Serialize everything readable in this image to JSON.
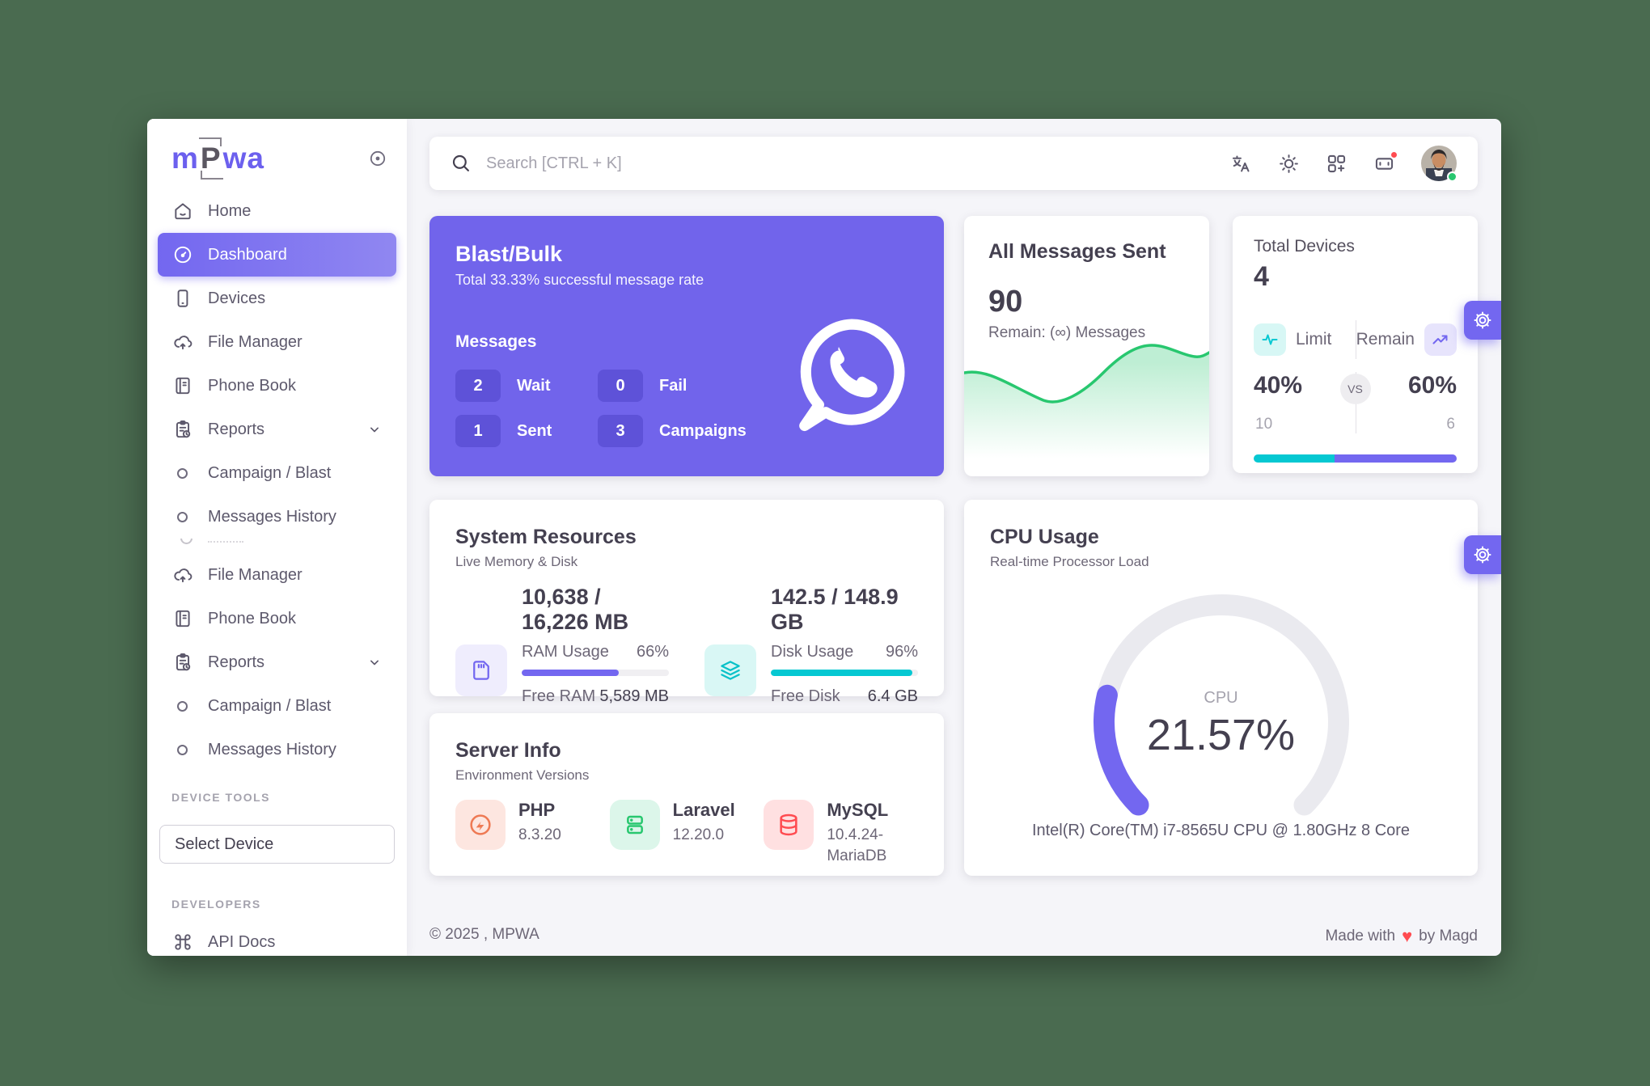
{
  "logo": {
    "letters": [
      "m",
      "P",
      "wa"
    ]
  },
  "topbar": {
    "search_placeholder": "Search [CTRL + K]"
  },
  "sidebar": {
    "items": [
      {
        "label": "Home"
      },
      {
        "label": "Dashboard"
      },
      {
        "label": "Devices"
      },
      {
        "label": "File Manager"
      },
      {
        "label": "Phone Book"
      },
      {
        "label": "Reports"
      },
      {
        "label": "Campaign / Blast"
      },
      {
        "label": "Messages History"
      },
      {
        "label": "File Manager"
      },
      {
        "label": "Phone Book"
      },
      {
        "label": "Reports"
      },
      {
        "label": "Campaign / Blast"
      },
      {
        "label": "Messages History"
      }
    ],
    "device_tools_header": "DEVICE TOOLS",
    "select_device": "Select Device",
    "developers_header": "DEVELOPERS",
    "api_docs": "API Docs"
  },
  "cards": {
    "blast": {
      "title": "Blast/Bulk",
      "subtitle": "Total 33.33% successful message rate",
      "section_label": "Messages",
      "stats": [
        {
          "value": "2",
          "label": "Wait"
        },
        {
          "value": "0",
          "label": "Fail"
        },
        {
          "value": "1",
          "label": "Sent"
        },
        {
          "value": "3",
          "label": "Campaigns"
        }
      ]
    },
    "messages_sent": {
      "title": "All Messages Sent",
      "value": "90",
      "remain": "Remain: (∞) Messages"
    },
    "devices": {
      "title": "Total Devices",
      "value": "4",
      "limit_label": "Limit",
      "remain_label": "Remain",
      "limit_pct": "40%",
      "remain_pct": "60%",
      "vs": "VS",
      "limit_count": "10",
      "remain_count": "6",
      "bar": {
        "limit": 40,
        "remain": 60
      }
    },
    "system": {
      "title": "System Resources",
      "subtitle": "Live Memory & Disk",
      "ram": {
        "value": "10,638 / 16,226 MB",
        "usage_label": "RAM Usage",
        "usage_pct": "66%",
        "pct": 66,
        "free_label": "Free RAM",
        "free_value": "5,589 MB"
      },
      "disk": {
        "value": "142.5 / 148.9 GB",
        "usage_label": "Disk Usage",
        "usage_pct": "96%",
        "pct": 96,
        "free_label": "Free Disk",
        "free_value": "6.4 GB"
      }
    },
    "cpu": {
      "title": "CPU Usage",
      "subtitle": "Real-time Processor Load",
      "gauge_label": "CPU",
      "gauge_value": "21.57%",
      "percent": 21.57,
      "cpu_name": "Intel(R) Core(TM) i7-8565U CPU @ 1.80GHz 8 Core"
    },
    "server": {
      "title": "Server Info",
      "subtitle": "Environment Versions",
      "items": [
        {
          "name": "PHP",
          "version": "8.3.20"
        },
        {
          "name": "Laravel",
          "version": "12.20.0"
        },
        {
          "name": "MySQL",
          "version": "10.4.24-MariaDB"
        }
      ]
    }
  },
  "footer": {
    "copyright": "© 2025 , MPWA",
    "made_with": "Made with",
    "heart": "♥",
    "by": "by Magd"
  },
  "colors": {
    "primary": "#7367f0",
    "teal": "#06c8d2",
    "green": "#28c76f",
    "red": "#ff4c51"
  }
}
